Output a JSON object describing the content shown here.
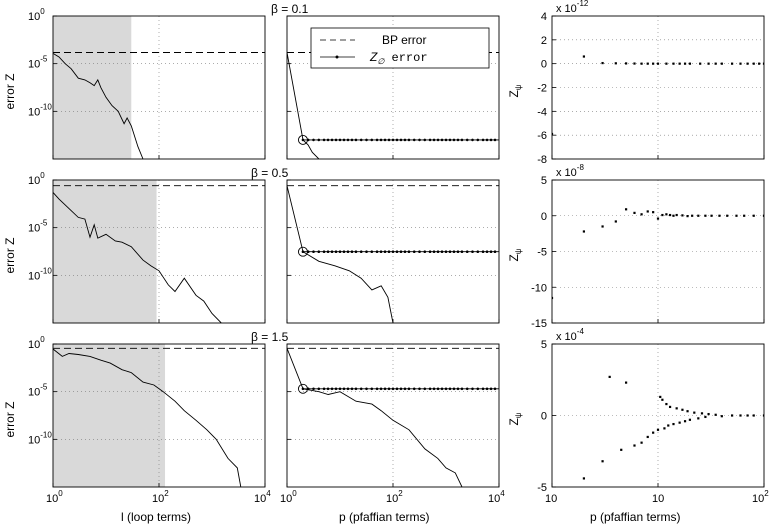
{
  "chart_data": [
    {
      "type": "line",
      "title": "β =  0.1",
      "xlabel": "",
      "ylabel": "error Z",
      "xscale": "log",
      "yscale": "log",
      "xlim": [
        1,
        10000
      ],
      "ylim": [
        1e-15,
        1
      ],
      "shaded_x": [
        1,
        30
      ],
      "series": [
        {
          "name": "BP error",
          "style": "dashed",
          "x": [
            1,
            10000
          ],
          "y": [
            0.00015,
            0.00015
          ]
        },
        {
          "style": "solid",
          "x": [
            1,
            1.3,
            1.7,
            2.2,
            3,
            4,
            5,
            6,
            7,
            8,
            10,
            13,
            17,
            22,
            25,
            30,
            40,
            50
          ],
          "y": [
            0.00012,
            5e-05,
            1e-05,
            3e-06,
            3e-07,
            2e-07,
            1e-07,
            5e-08,
            2e-07,
            3e-08,
            3e-09,
            4e-10,
            1e-10,
            5e-12,
            2e-11,
            3e-12,
            2e-14,
            1e-15
          ]
        }
      ],
      "grid": true
    },
    {
      "type": "line",
      "title": "",
      "xlabel": "",
      "ylabel": "",
      "xscale": "log",
      "yscale": "log",
      "xlim": [
        1,
        10000
      ],
      "ylim": [
        1e-15,
        1
      ],
      "series": [
        {
          "name": "BP error",
          "style": "dashed",
          "x": [
            1,
            10000
          ],
          "y": [
            0.00015,
            0.00015
          ]
        },
        {
          "name": "Z_∅ error",
          "style": "solid-marker",
          "x": [
            1,
            2,
            5,
            10,
            20,
            50,
            100,
            200,
            500,
            1000,
            2000,
            5000,
            10000
          ],
          "y": [
            0.00015,
            1e-13,
            1e-13,
            1e-13,
            1e-13,
            1e-13,
            1e-13,
            1e-13,
            1e-13,
            1e-13,
            1e-13,
            1e-13,
            1e-13
          ]
        },
        {
          "style": "solid",
          "x": [
            2,
            2.5,
            3,
            4
          ],
          "y": [
            1e-13,
            3e-14,
            5e-15,
            1e-15
          ]
        }
      ],
      "annotation": {
        "type": "circle",
        "x": 2,
        "y": 1e-13
      },
      "legend": "top-center",
      "grid": true
    },
    {
      "type": "scatter",
      "title": "",
      "xlabel": "",
      "ylabel": "Z_ψ",
      "xscale": "log",
      "xlim": [
        1,
        100
      ],
      "ylim": [
        -8,
        4
      ],
      "y_multiplier": "x 10^-12",
      "yticks": [
        -8,
        -6,
        -4,
        -2,
        0,
        2,
        4
      ],
      "points": {
        "x": [
          1,
          2,
          3,
          4,
          5,
          6,
          7,
          8,
          9,
          10,
          12,
          14,
          16,
          18,
          20,
          25,
          30,
          35,
          40,
          50,
          60,
          70,
          80,
          90,
          100
        ],
        "y": [
          -5.9,
          0.6,
          0.05,
          0.03,
          0.02,
          0.01,
          0,
          0,
          0,
          0,
          0,
          0,
          0,
          0,
          0,
          0,
          0,
          0,
          0,
          0,
          0,
          0,
          0,
          0,
          0
        ]
      },
      "grid": true
    },
    {
      "type": "line",
      "title": "β = 0.5",
      "xlabel": "",
      "ylabel": "error Z",
      "xscale": "log",
      "yscale": "log",
      "xlim": [
        1,
        10000
      ],
      "ylim": [
        1e-15,
        1
      ],
      "shaded_x": [
        1,
        90
      ],
      "series": [
        {
          "name": "BP error",
          "style": "dashed",
          "x": [
            1,
            10000
          ],
          "y": [
            0.25,
            0.25
          ]
        },
        {
          "style": "solid",
          "x": [
            1,
            1.3,
            2,
            3,
            4,
            5,
            6,
            7,
            10,
            15,
            20,
            30,
            50,
            70,
            100,
            150,
            200,
            300,
            500,
            700,
            1000,
            1500
          ],
          "y": [
            0.05,
            0.01,
            0.001,
            0.00012,
            8e-05,
            1e-06,
            2e-05,
            8e-07,
            2e-06,
            4e-07,
            3e-07,
            1e-07,
            4e-09,
            1e-09,
            3e-10,
            1e-11,
            2e-12,
            5e-11,
            8e-13,
            2e-13,
            1e-14,
            1e-15
          ]
        }
      ],
      "grid": true
    },
    {
      "type": "line",
      "title": "",
      "xlabel": "",
      "ylabel": "",
      "xscale": "log",
      "yscale": "log",
      "xlim": [
        1,
        10000
      ],
      "ylim": [
        1e-15,
        1
      ],
      "series": [
        {
          "style": "dashed",
          "x": [
            1,
            10000
          ],
          "y": [
            0.25,
            0.25
          ]
        },
        {
          "style": "solid-marker",
          "x": [
            1,
            2,
            5,
            10,
            20,
            50,
            100,
            200,
            500,
            1000,
            2000,
            5000,
            10000
          ],
          "y": [
            0.25,
            3e-08,
            3e-08,
            3e-08,
            3e-08,
            3e-08,
            3e-08,
            3e-08,
            3e-08,
            3e-08,
            3e-08,
            3e-08,
            3e-08
          ]
        },
        {
          "style": "solid",
          "x": [
            2,
            4,
            8,
            15,
            25,
            40,
            60,
            80,
            100
          ],
          "y": [
            3e-08,
            3e-09,
            1e-09,
            3e-10,
            5e-11,
            3e-12,
            8e-12,
            5e-13,
            1e-15
          ]
        }
      ],
      "annotation": {
        "type": "circle",
        "x": 2,
        "y": 3e-08
      },
      "grid": true
    },
    {
      "type": "scatter",
      "title": "",
      "xlabel": "",
      "ylabel": "Z_ψ",
      "xscale": "log",
      "xlim": [
        1,
        100
      ],
      "ylim": [
        -15,
        5
      ],
      "y_multiplier": "x 10^-8",
      "yticks": [
        -15,
        -10,
        -5,
        0,
        5
      ],
      "points": {
        "x": [
          1,
          2,
          3,
          4,
          5,
          6,
          7,
          8,
          9,
          10,
          11,
          12,
          13,
          14,
          15,
          17,
          19,
          21,
          24,
          28,
          32,
          38,
          45,
          55,
          65,
          80,
          100
        ],
        "y": [
          -11.5,
          -2.2,
          -1.5,
          -0.8,
          0.9,
          0.4,
          0.2,
          0.6,
          0.5,
          -0.4,
          0.1,
          0.2,
          0.1,
          0,
          0.1,
          0.05,
          -0.05,
          0,
          0,
          0,
          0,
          0,
          0,
          0,
          0,
          0,
          0
        ]
      },
      "grid": true
    },
    {
      "type": "line",
      "title": "β = 1.5",
      "xlabel": "l (loop terms)",
      "ylabel": "error Z",
      "xscale": "log",
      "yscale": "log",
      "xlim": [
        1,
        10000
      ],
      "ylim": [
        1e-15,
        1
      ],
      "shaded_x": [
        1,
        130
      ],
      "series": [
        {
          "name": "BP error",
          "style": "dashed",
          "x": [
            1,
            10000
          ],
          "y": [
            0.35,
            0.35
          ]
        },
        {
          "style": "solid",
          "x": [
            1,
            1.5,
            2,
            3,
            5,
            8,
            12,
            20,
            30,
            50,
            80,
            120,
            200,
            300,
            500,
            800,
            1200,
            2000,
            3000,
            3500
          ],
          "y": [
            0.3,
            0.05,
            0.1,
            0.08,
            0.05,
            0.02,
            0.01,
            0.002,
            0.001,
            0.0001,
            5e-05,
            1e-05,
            1e-06,
            1e-07,
            1e-08,
            1e-09,
            1e-10,
            1e-12,
            1e-13,
            1e-15
          ]
        }
      ],
      "grid": true
    },
    {
      "type": "line",
      "title": "",
      "xlabel": "p (pfaffian terms)",
      "ylabel": "",
      "xscale": "log",
      "yscale": "log",
      "xlim": [
        1,
        10000
      ],
      "ylim": [
        1e-15,
        1
      ],
      "series": [
        {
          "style": "dashed",
          "x": [
            1,
            10000
          ],
          "y": [
            0.35,
            0.35
          ]
        },
        {
          "style": "solid-marker",
          "x": [
            1,
            2,
            5,
            10,
            20,
            50,
            100,
            200,
            500,
            1000,
            2000,
            5000,
            10000
          ],
          "y": [
            0.35,
            2e-05,
            2e-05,
            2e-05,
            2e-05,
            2e-05,
            2e-05,
            2e-05,
            2e-05,
            2e-05,
            2e-05,
            2e-05,
            2e-05
          ]
        },
        {
          "style": "solid",
          "x": [
            2,
            4,
            6,
            10,
            20,
            40,
            60,
            100,
            200,
            400,
            700,
            1000,
            1500,
            2000
          ],
          "y": [
            2e-05,
            1e-05,
            5e-06,
            1e-05,
            1e-06,
            5e-07,
            1e-07,
            1e-08,
            1e-09,
            1e-11,
            1e-12,
            1e-13,
            3e-14,
            1e-15
          ]
        }
      ],
      "annotation": {
        "type": "circle",
        "x": 2,
        "y": 2e-05
      },
      "grid": true
    },
    {
      "type": "scatter",
      "title": "",
      "xlabel": "p (pfaffian terms)",
      "ylabel": "Z_ψ",
      "xscale": "log",
      "xlim": [
        1,
        100
      ],
      "ylim": [
        -5,
        5
      ],
      "y_multiplier": "x 10^-4",
      "yticks": [
        -5,
        0,
        5
      ],
      "points": {
        "x": [
          2,
          3,
          3.5,
          4.5,
          5,
          6,
          7,
          8,
          9,
          10,
          10.5,
          11,
          11.5,
          12,
          12.5,
          13,
          14,
          15,
          16,
          17,
          18,
          19,
          20,
          22,
          24,
          26,
          28,
          30,
          35,
          40,
          50,
          60,
          70,
          80,
          100
        ],
        "y": [
          -4.4,
          -3.2,
          2.7,
          -2.4,
          2.3,
          -2.1,
          -1.9,
          -1.5,
          -1.2,
          -1,
          1.3,
          1.1,
          -0.9,
          0.8,
          -0.7,
          0.6,
          -0.6,
          0.5,
          -0.5,
          0.4,
          -0.4,
          0.3,
          -0.3,
          0.2,
          -0.2,
          0.15,
          -0.1,
          0.1,
          0.05,
          -0.05,
          0,
          0,
          0,
          0,
          0
        ]
      },
      "grid": true
    }
  ],
  "tick_labels": {
    "log_x": [
      "10",
      "10",
      "10",
      "10"
    ],
    "log_x_sup": [
      "0",
      "2",
      "4"
    ],
    "log_y": [
      "10",
      "10",
      "10"
    ],
    "log_y_sup": [
      "0",
      "-5",
      "-10"
    ],
    "lin_x": [
      "1",
      "10",
      "10"
    ],
    "lin_x_sup": [
      "0",
      "1",
      "2"
    ]
  },
  "legend": {
    "bp_label": "BP error",
    "z0_label_main": "Z",
    "z0_label_sub": "∅",
    "z0_label_rest": " error"
  },
  "multipliers": [
    {
      "base": "x 10",
      "exp": "-12"
    },
    {
      "base": "x 10",
      "exp": "-8"
    },
    {
      "base": "x 10",
      "exp": "-4"
    }
  ],
  "titles": [
    "β =  0.1",
    "β = 0.5",
    "β = 1.5"
  ],
  "ylabels": {
    "error": "error Z",
    "zpsi_main": "Z",
    "zpsi_sub": "ψ"
  },
  "xlabels": {
    "loop": "l (loop terms)",
    "pfaff": "p (pfaffian terms)"
  },
  "scatter_yticks": [
    [
      "4",
      "2",
      "0",
      "-2",
      "-4",
      "-6",
      "-8"
    ],
    [
      "5",
      "0",
      "-5",
      "-10",
      "-15"
    ],
    [
      "5",
      "0",
      "-5"
    ]
  ]
}
